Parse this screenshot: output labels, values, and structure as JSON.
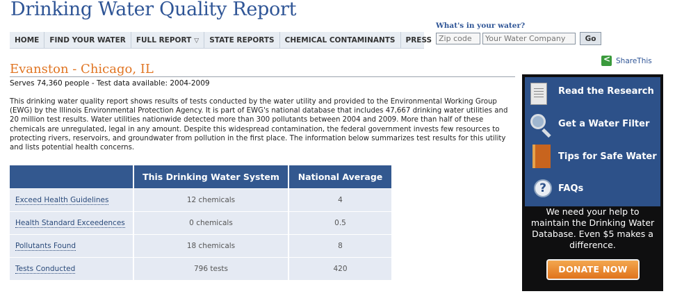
{
  "site": {
    "title": "Drinking Water Quality Report"
  },
  "nav": {
    "items": [
      {
        "label": "HOME"
      },
      {
        "label": "FIND YOUR WATER"
      },
      {
        "label": "FULL REPORT",
        "has_dropdown": true
      },
      {
        "label": "STATE REPORTS"
      },
      {
        "label": "CHEMICAL CONTAMINANTS"
      },
      {
        "label": "PRESS"
      }
    ]
  },
  "search": {
    "label": "What's in your water?",
    "zip_placeholder": "Zip code",
    "company_placeholder": "Your Water Company",
    "go_label": "Go"
  },
  "share": {
    "label": "ShareThis",
    "icon": "share-icon"
  },
  "location": {
    "title": "Evanston - Chicago, IL",
    "serves": "Serves 74,360 people - Test data available: 2004-2009"
  },
  "intro": "This drinking water quality report shows results of tests conducted by the water utility and provided to the Environmental Working Group (EWG) by the Illinois Environmental Protection Agency. It is part of EWG's national database that includes 47,667 drinking water utilities and 20 million test results. Water utilities nationwide detected more than 300 pollutants between 2004 and 2009. More than half of these chemicals are unregulated, legal in any amount. Despite this widespread contamination, the federal government invests few resources to protecting rivers, reservoirs, and groundwater from pollution in the first place. The information below summarizes test results for this utility and lists potential health concerns.",
  "table": {
    "headers": [
      "",
      "This Drinking Water System",
      "National Average"
    ],
    "rows": [
      {
        "metric": "Exceed Health Guidelines",
        "system": "12 chemicals",
        "national": "4"
      },
      {
        "metric": "Health Standard Exceedences",
        "system": "0 chemicals",
        "national": "0.5"
      },
      {
        "metric": "Pollutants Found",
        "system": "18 chemicals",
        "national": "8"
      },
      {
        "metric": "Tests Conducted",
        "system": "796 tests",
        "national": "420"
      }
    ]
  },
  "sidebar": {
    "items": [
      {
        "label": "Read the Research",
        "icon": "document-icon"
      },
      {
        "label": "Get a Water Filter",
        "icon": "magnifier-icon"
      },
      {
        "label": "Tips for Safe Water",
        "icon": "book-icon"
      },
      {
        "label": "FAQs",
        "icon": "question-icon"
      }
    ],
    "help_text": "We need your help to maintain the Drinking Water Database. Even $5 makes a difference.",
    "donate_label": "DONATE NOW"
  },
  "colors": {
    "title_blue": "#2f5596",
    "location_orange": "#e07523",
    "table_header": "#33588f",
    "table_row": "#e5eaf3",
    "sidebar_bg": "#0f0f10",
    "sidebar_block": "#2d5189",
    "donate_orange": "#e0731c"
  }
}
